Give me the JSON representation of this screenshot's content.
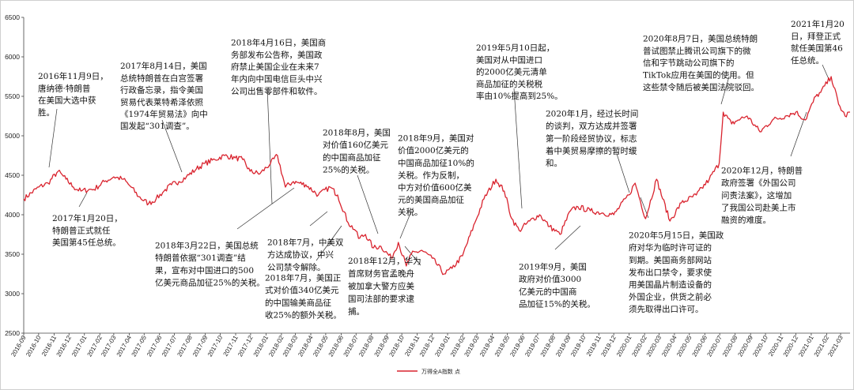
{
  "chart_data": {
    "type": "line",
    "title": "",
    "xlabel": "",
    "ylabel": "",
    "ylim": [
      2500,
      6500
    ],
    "yticks": [
      "2500",
      "3000",
      "3500",
      "4000",
      "4500",
      "5000",
      "5500",
      "6000",
      "6500"
    ],
    "x_tick_labels": [
      "2016-09",
      "2016-10",
      "2016-11",
      "2016-12",
      "2017-01",
      "2017-02",
      "2017-03",
      "2017-04",
      "2017-05",
      "2017-06",
      "2017-07",
      "2017-08",
      "2017-09",
      "2017-10",
      "2017-11",
      "2017-12",
      "2018-01",
      "2018-02",
      "2018-03",
      "2018-04",
      "2018-05",
      "2018-06",
      "2018-07",
      "2018-08",
      "2018-09",
      "2018-10",
      "2018-11",
      "2018-12",
      "2019-01",
      "2019-02",
      "2019-03",
      "2019-04",
      "2019-05",
      "2019-06",
      "2019-07",
      "2019-08",
      "2019-09",
      "2019-10",
      "2019-11",
      "2019-12",
      "2020-01",
      "2020-02",
      "2020-03",
      "2020-04",
      "2020-05",
      "2020-06",
      "2020-07",
      "2020-08",
      "2020-09",
      "2020-10",
      "2020-11",
      "2020-12",
      "2021-01",
      "2021-02",
      "2021-03"
    ],
    "grid": false,
    "legend_position": "bottom-center",
    "series": [
      {
        "name": "万得全A指数 点",
        "color": "#d9232e",
        "points": [
          [
            "2016-09-01",
            4200
          ],
          [
            "2016-10-01",
            4350
          ],
          [
            "2016-10-20",
            4400
          ],
          [
            "2016-11-09",
            4550
          ],
          [
            "2016-11-25",
            4450
          ],
          [
            "2016-12-10",
            4350
          ],
          [
            "2016-12-25",
            4300
          ],
          [
            "2017-01-10",
            4320
          ],
          [
            "2017-01-20",
            4320
          ],
          [
            "2017-02-10",
            4420
          ],
          [
            "2017-03-01",
            4480
          ],
          [
            "2017-03-20",
            4450
          ],
          [
            "2017-04-05",
            4350
          ],
          [
            "2017-04-20",
            4230
          ],
          [
            "2017-05-10",
            4140
          ],
          [
            "2017-05-25",
            4200
          ],
          [
            "2017-06-10",
            4300
          ],
          [
            "2017-06-25",
            4380
          ],
          [
            "2017-07-10",
            4420
          ],
          [
            "2017-07-25",
            4480
          ],
          [
            "2017-08-14",
            4580
          ],
          [
            "2017-08-31",
            4650
          ],
          [
            "2017-09-20",
            4700
          ],
          [
            "2017-10-10",
            4750
          ],
          [
            "2017-10-31",
            4720
          ],
          [
            "2017-11-15",
            4700
          ],
          [
            "2017-11-30",
            4550
          ],
          [
            "2017-12-20",
            4520
          ],
          [
            "2018-01-10",
            4650
          ],
          [
            "2018-01-24",
            4750
          ],
          [
            "2018-02-09",
            4350
          ],
          [
            "2018-02-25",
            4420
          ],
          [
            "2018-03-22",
            4380
          ],
          [
            "2018-04-16",
            4250
          ],
          [
            "2018-05-10",
            4350
          ],
          [
            "2018-05-25",
            4250
          ],
          [
            "2018-06-15",
            3900
          ],
          [
            "2018-06-30",
            3800
          ],
          [
            "2018-07-06",
            3700
          ],
          [
            "2018-07-20",
            3750
          ],
          [
            "2018-08-05",
            3580
          ],
          [
            "2018-08-20",
            3600
          ],
          [
            "2018-09-10",
            3450
          ],
          [
            "2018-09-24",
            3650
          ],
          [
            "2018-10-10",
            3350
          ],
          [
            "2018-10-20",
            3500
          ],
          [
            "2018-11-10",
            3550
          ],
          [
            "2018-12-01",
            3450
          ],
          [
            "2018-12-25",
            3250
          ],
          [
            "2019-01-10",
            3320
          ],
          [
            "2019-01-31",
            3480
          ],
          [
            "2019-02-25",
            3900
          ],
          [
            "2019-03-15",
            4200
          ],
          [
            "2019-04-08",
            4450
          ],
          [
            "2019-04-25",
            4300
          ],
          [
            "2019-05-10",
            3950
          ],
          [
            "2019-05-25",
            3800
          ],
          [
            "2019-06-15",
            3920
          ],
          [
            "2019-07-05",
            4000
          ],
          [
            "2019-07-25",
            3850
          ],
          [
            "2019-08-15",
            3750
          ],
          [
            "2019-09-05",
            4050
          ],
          [
            "2019-09-20",
            4100
          ],
          [
            "2019-10-15",
            4050
          ],
          [
            "2019-11-10",
            4020
          ],
          [
            "2019-12-01",
            4000
          ],
          [
            "2019-12-31",
            4250
          ],
          [
            "2020-01-13",
            4400
          ],
          [
            "2020-02-03",
            3950
          ],
          [
            "2020-02-25",
            4450
          ],
          [
            "2020-03-23",
            3920
          ],
          [
            "2020-04-15",
            4150
          ],
          [
            "2020-05-15",
            4250
          ],
          [
            "2020-06-10",
            4450
          ],
          [
            "2020-06-30",
            4650
          ],
          [
            "2020-07-08",
            5300
          ],
          [
            "2020-07-25",
            5150
          ],
          [
            "2020-08-07",
            5200
          ],
          [
            "2020-08-25",
            5250
          ],
          [
            "2020-09-20",
            5050
          ],
          [
            "2020-10-15",
            5200
          ],
          [
            "2020-11-10",
            5250
          ],
          [
            "2020-12-01",
            5300
          ],
          [
            "2020-12-20",
            5200
          ],
          [
            "2021-01-10",
            5500
          ],
          [
            "2021-01-20",
            5550
          ],
          [
            "2021-02-10",
            5750
          ],
          [
            "2021-02-25",
            5400
          ],
          [
            "2021-03-10",
            5250
          ],
          [
            "2021-03-20",
            5300
          ]
        ]
      }
    ],
    "annotations": [
      {
        "id": "trump-elected",
        "lines": [
          "2016年11月9日，",
          "唐纳德·特朗普",
          "在美国大选中获",
          "胜。"
        ]
      },
      {
        "id": "trump-inaug",
        "lines": [
          "2017年1月20日，",
          "特朗普正式就任",
          "美国第45任总统。"
        ]
      },
      {
        "id": "301-inquiry",
        "lines": [
          "2017年8月14日，美国",
          "总统特朗普在白宫签署",
          "行政备忘录，指令美国",
          "贸易代表莱特希泽依照",
          "《1974年贸易法》向中",
          "国发起“301调查”。"
        ]
      },
      {
        "id": "301-result",
        "lines": [
          "2018年3月22日，美国总统",
          "特朗普依据“301调查”结",
          "果，宣布对中国进口的500",
          "亿美元商品加征25%的关税。"
        ]
      },
      {
        "id": "zte-ban",
        "lines": [
          "2018年4月16日，美国商",
          "务部发布公告称，美国政",
          "府禁止美国企业在未来7",
          "年内向中国电信巨头中兴",
          "公司出售零部件和软件。"
        ]
      },
      {
        "id": "zte-lift",
        "lines": [
          "2018年7月，中美双",
          "方达成协议，中兴",
          "公司禁令解除。"
        ]
      },
      {
        "id": "tariff-34b",
        "lines": [
          "2018年7月，美国正",
          "式对价值340亿美元",
          "的中国输美商品征",
          "收25%的额外关税。"
        ]
      },
      {
        "id": "tariff-16b",
        "lines": [
          "2018年8月，美国",
          "对价值160亿美元",
          "的中国商品加征",
          "25%的关税。"
        ]
      },
      {
        "id": "tariff-200b",
        "lines": [
          "2018年9月，美国对",
          "价值2000亿美元的",
          "中国商品加征10%的",
          "关税。作为反制，",
          "中方对价值600亿美",
          "元的美国商品加征",
          "关税。"
        ]
      },
      {
        "id": "meng",
        "lines": [
          "2018年12月，华为",
          "首席财务官孟晚舟",
          "被加拿大警方应美",
          "国司法部的要求逮",
          "捕。"
        ]
      },
      {
        "id": "tariff-raise",
        "lines": [
          "2019年5月10日起，",
          "美国对从中国进口",
          "的2000亿美元清单",
          "商品加征的关税税",
          "率由10%提高到25%。"
        ]
      },
      {
        "id": "tariff-sep2019",
        "lines": [
          "2019年9月，美国",
          "政府对价值3000",
          "亿美元的中国商",
          "品加征15%的关税。"
        ]
      },
      {
        "id": "phase-one",
        "lines": [
          "2020年1月，经过长时间",
          "的谈判，双方达成并签署",
          "第一阶段经贸协议，标志",
          "着中美贸易摩擦的暂时缓",
          "和。"
        ]
      },
      {
        "id": "huawei-ban",
        "lines": [
          "2020年5月15日，美国政",
          "府对华为临时许可证的",
          "到期。美国商务部网站",
          "发布出口禁令，要求使",
          "用美国晶片制造设备的",
          "外国企业，供货之前必",
          "须先取得出口许可。"
        ]
      },
      {
        "id": "tiktok",
        "lines": [
          "2020年8月7日，美国总统特朗",
          "普试图禁止腾讯公司旗下的微",
          "信和字节跳动公司旗下的",
          "TikTok应用在美国的使用。但",
          "这些禁令随后被美国法院驳回。"
        ]
      },
      {
        "id": "hfcaa",
        "lines": [
          "2020年12月，特朗普",
          "政府签署《外国公司",
          "问责法案》，这增加",
          "了我国公司赴美上市",
          "融资的难度。"
        ]
      },
      {
        "id": "biden",
        "lines": [
          "2021年1月20",
          "日，拜登正式",
          "就任美国第46",
          "任总统。"
        ]
      }
    ]
  }
}
